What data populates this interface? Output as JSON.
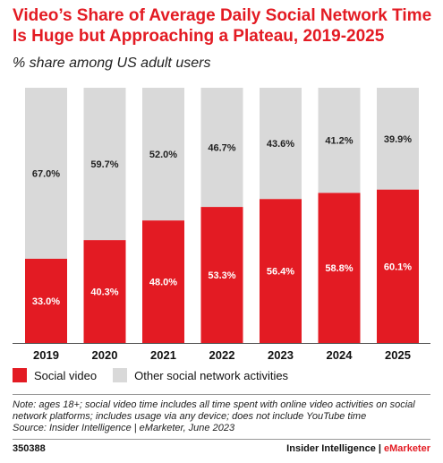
{
  "title": "Video’s Share of Average Daily Social Network Time Is Huge but Approaching a Plateau, 2019-2025",
  "subtitle": "% share among US adult users",
  "note": "Note: ages 18+; social video time includes all time spent with online video activities on social network platforms; includes usage via any device; does not include YouTube time",
  "source": "Source: Insider Intelligence | eMarketer, June 2023",
  "chart_id": "350388",
  "brand": {
    "name": "Insider Intelligence",
    "separator": " | ",
    "sub": "eMarketer"
  },
  "colors": {
    "social_video": "#e31b23",
    "other": "#d9d9d9"
  },
  "chart_data": {
    "type": "bar",
    "stacked": true,
    "categories": [
      "2019",
      "2020",
      "2021",
      "2022",
      "2023",
      "2024",
      "2025"
    ],
    "series": [
      {
        "name": "Social video",
        "values": [
          33.0,
          40.3,
          48.0,
          53.3,
          56.4,
          58.8,
          60.1
        ],
        "labels": [
          "33.0%",
          "40.3%",
          "48.0%",
          "53.3%",
          "56.4%",
          "58.8%",
          "60.1%"
        ]
      },
      {
        "name": "Other social network activities",
        "values": [
          67.0,
          59.7,
          52.0,
          46.7,
          43.6,
          41.2,
          39.9
        ],
        "labels": [
          "67.0%",
          "59.7%",
          "52.0%",
          "46.7%",
          "43.6%",
          "41.2%",
          "39.9%"
        ]
      }
    ],
    "ylim": [
      0,
      100
    ],
    "legend": "bottom-left",
    "grid": false
  }
}
